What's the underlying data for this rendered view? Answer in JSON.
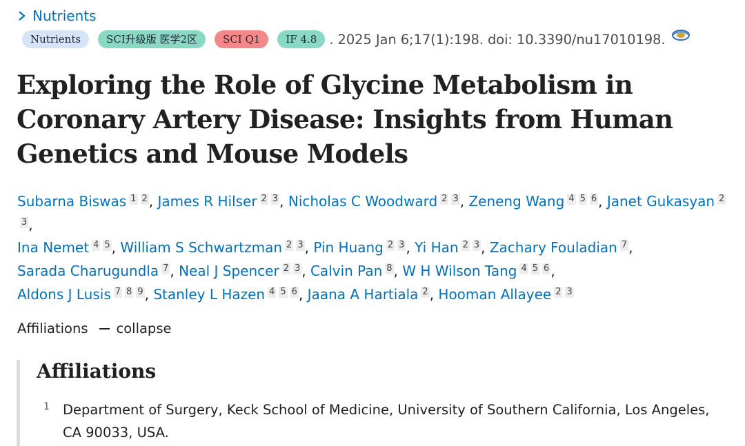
{
  "journal": {
    "link_label": "Nutrients"
  },
  "citation": {
    "badges": [
      "Nutrients",
      "SCI升级版 医学2区",
      "SCI Q1",
      "IF 4.8"
    ],
    "text": ". 2025 Jan 6;17(1):198. doi: 10.3390/nu17010198.",
    "icon": "eye-glasses-icon"
  },
  "article": {
    "title_lines": [
      "Exploring the Role of Glycine Metabolism in",
      "Coronary Artery Disease: Insights from Human",
      "Genetics and Mouse Models"
    ]
  },
  "authors": [
    {
      "name": "Subarna Biswas",
      "affs": [
        "1",
        "2"
      ]
    },
    {
      "name": "James R Hilser",
      "affs": [
        "2",
        "3"
      ]
    },
    {
      "name": "Nicholas C Woodward",
      "affs": [
        "2",
        "3"
      ]
    },
    {
      "name": "Zeneng Wang",
      "affs": [
        "4",
        "5",
        "6"
      ]
    },
    {
      "name": "Janet Gukasyan",
      "affs": [
        "2",
        "3"
      ]
    },
    {
      "name": "Ina Nemet",
      "affs": [
        "4",
        "5"
      ]
    },
    {
      "name": "William S Schwartzman",
      "affs": [
        "2",
        "3"
      ]
    },
    {
      "name": "Pin Huang",
      "affs": [
        "2",
        "3"
      ]
    },
    {
      "name": "Yi Han",
      "affs": [
        "2",
        "3"
      ]
    },
    {
      "name": "Zachary Fouladian",
      "affs": [
        "7"
      ]
    },
    {
      "name": "Sarada Charugundla",
      "affs": [
        "7"
      ]
    },
    {
      "name": "Neal J Spencer",
      "affs": [
        "2",
        "3"
      ]
    },
    {
      "name": "Calvin Pan",
      "affs": [
        "8"
      ]
    },
    {
      "name": "W H Wilson Tang",
      "affs": [
        "4",
        "5",
        "6"
      ]
    },
    {
      "name": "Aldons J Lusis",
      "affs": [
        "7",
        "8",
        "9"
      ]
    },
    {
      "name": "Stanley L Hazen",
      "affs": [
        "4",
        "5",
        "6"
      ]
    },
    {
      "name": "Jaana A Hartiala",
      "affs": [
        "2"
      ]
    },
    {
      "name": "Hooman Allayee",
      "affs": [
        "2",
        "3"
      ]
    }
  ],
  "author_line_breaks": [
    4,
    9,
    13,
    17
  ],
  "affiliations_toggle": {
    "label": "Affiliations",
    "action": "collapse"
  },
  "affiliations": {
    "heading": "Affiliations",
    "items": [
      {
        "num": "1",
        "text": "Department of Surgery, Keck School of Medicine, University of Southern California, Los Angeles, CA 90033, USA."
      }
    ]
  },
  "colors": {
    "link": "#0071bc",
    "badge_journal": "#d6e4f7",
    "badge_teal": "#8ad7c4",
    "badge_red": "#f4878a"
  }
}
